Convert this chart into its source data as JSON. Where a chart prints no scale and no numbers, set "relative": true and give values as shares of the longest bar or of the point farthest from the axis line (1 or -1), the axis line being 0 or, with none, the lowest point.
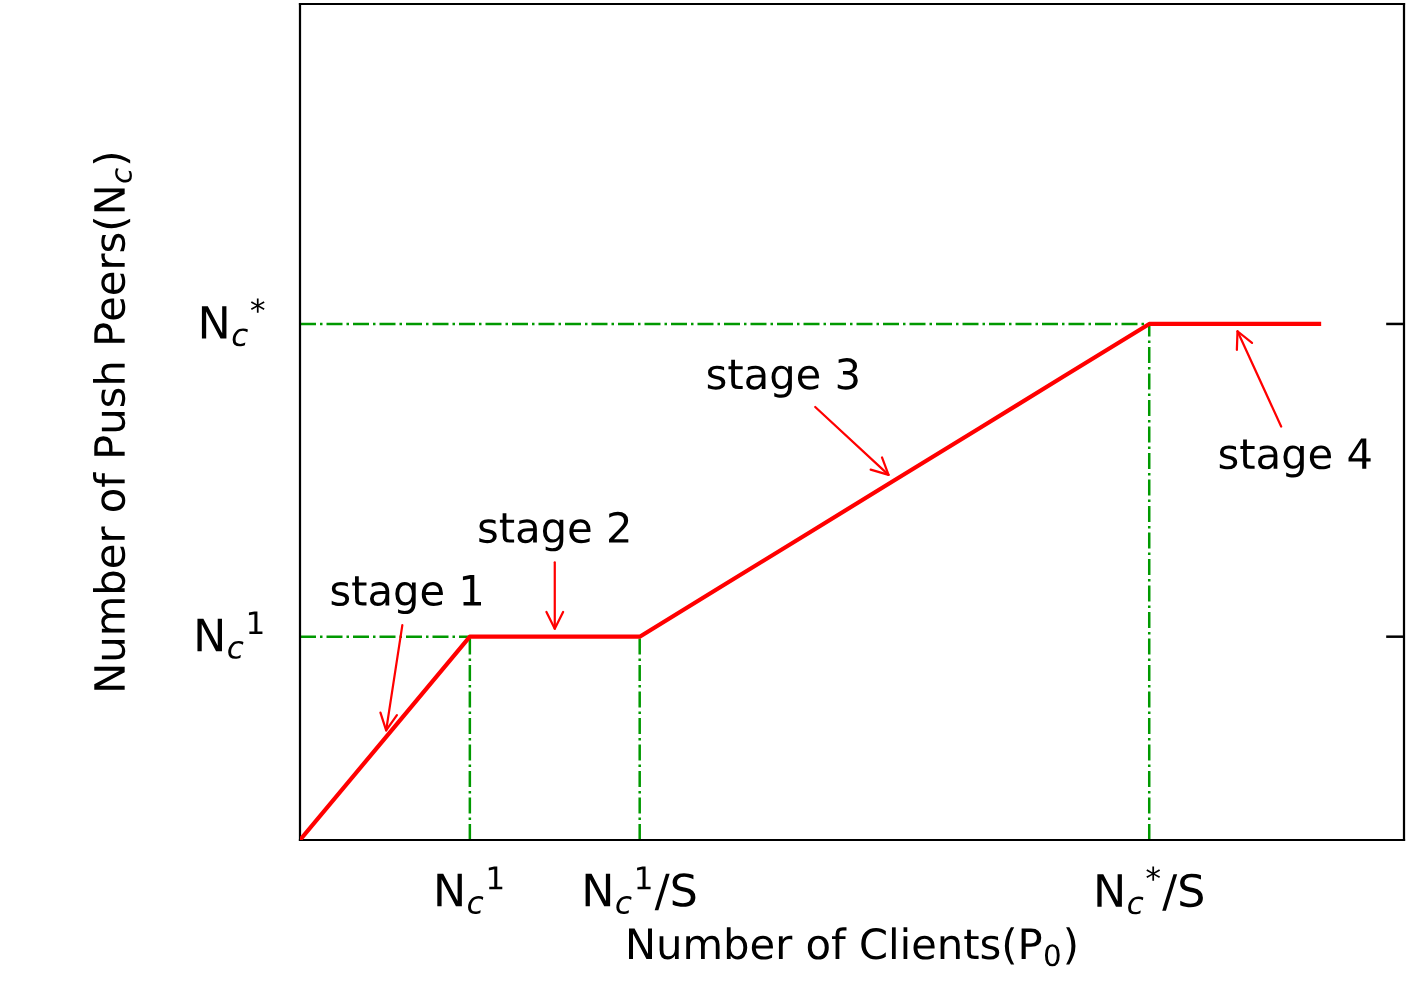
{
  "chart_data": {
    "type": "line",
    "relative": true,
    "xlabel": "Number of Clients(P$_{0}$)",
    "ylabel": "Number of Push Peers(N$_{c}$)",
    "categories": [
      null,
      null,
      "N$_{c}$$^{1}$",
      null,
      "N$_{c}$$^{1}$/S",
      null,
      null,
      null,
      null,
      null,
      "N$_{c}$$^{*}$/S",
      null,
      null,
      null
    ],
    "series": [
      {
        "color": "#ff0000",
        "values": [
          0,
          0.197,
          0.394,
          0.394,
          0.394,
          0.495,
          0.596,
          0.697,
          0.798,
          0.899,
          1,
          1,
          1,
          null
        ]
      }
    ],
    "ref_lines": [
      {
        "axis": "y",
        "value": 1,
        "label": "N$_{c}$$^{*}$",
        "color": "#009900",
        "line_style": "dashdot"
      },
      {
        "axis": "y",
        "value": 0.394,
        "label": "N$_{c}$$^{1}$",
        "color": "#009900",
        "line_style": "dashdot"
      },
      {
        "axis": "x",
        "value": "N$_{c}$$^{1}$",
        "color": "#009900",
        "line_style": "dashdot"
      },
      {
        "axis": "x",
        "value": "N$_{c}$$^{1}$/S",
        "color": "#009900",
        "line_style": "dashdot"
      },
      {
        "axis": "x",
        "value": "N$_{c}$$^{*}$/S",
        "color": "#009900",
        "line_style": "dashdot"
      }
    ],
    "annotations": [
      "stage 1",
      "stage 2",
      "stage 3",
      "stage 4"
    ],
    "grid": false,
    "legend": false,
    "marker": "none",
    "line_style": "solid"
  }
}
